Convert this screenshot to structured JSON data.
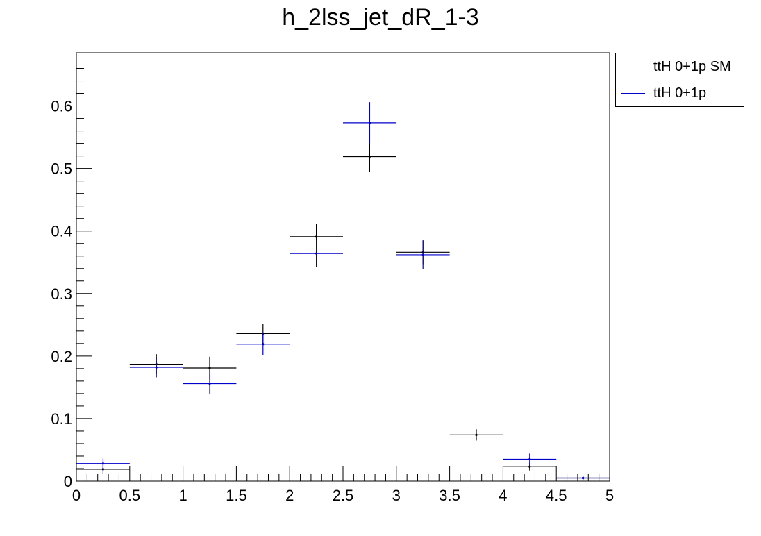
{
  "chart_data": {
    "type": "line",
    "title": "h_2lss_jet_dR_1-3",
    "xlabel": "",
    "ylabel": "",
    "xlim": [
      0,
      5
    ],
    "ylim": [
      0,
      0.685
    ],
    "x_ticks": [
      "0",
      "0.5",
      "1",
      "1.5",
      "2",
      "2.5",
      "3",
      "3.5",
      "4",
      "4.5",
      "5"
    ],
    "y_ticks": [
      "0",
      "0.1",
      "0.2",
      "0.3",
      "0.4",
      "0.5",
      "0.6"
    ],
    "bin_edges": [
      0,
      0.5,
      1,
      1.5,
      2,
      2.5,
      3,
      3.5,
      4,
      4.5,
      5
    ],
    "legend_position": "top-right outside",
    "series": [
      {
        "name": "ttH 0+1p SM",
        "color": "#000000",
        "values": [
          0.019,
          0.187,
          0.181,
          0.236,
          0.391,
          0.519,
          0.366,
          0.074,
          0.023,
          0.005
        ],
        "errors": [
          0.008,
          0.016,
          0.018,
          0.016,
          0.02,
          0.025,
          0.019,
          0.009,
          0.006,
          0.003
        ]
      },
      {
        "name": "ttH 0+1p",
        "color": "#0000cc",
        "values": [
          0.028,
          0.182,
          0.156,
          0.219,
          0.364,
          0.573,
          0.362,
          0.0,
          0.035,
          0.005
        ],
        "errors": [
          0.008,
          0.016,
          0.016,
          0.018,
          0.021,
          0.033,
          0.023,
          0.0,
          0.009,
          0.004
        ]
      }
    ]
  }
}
